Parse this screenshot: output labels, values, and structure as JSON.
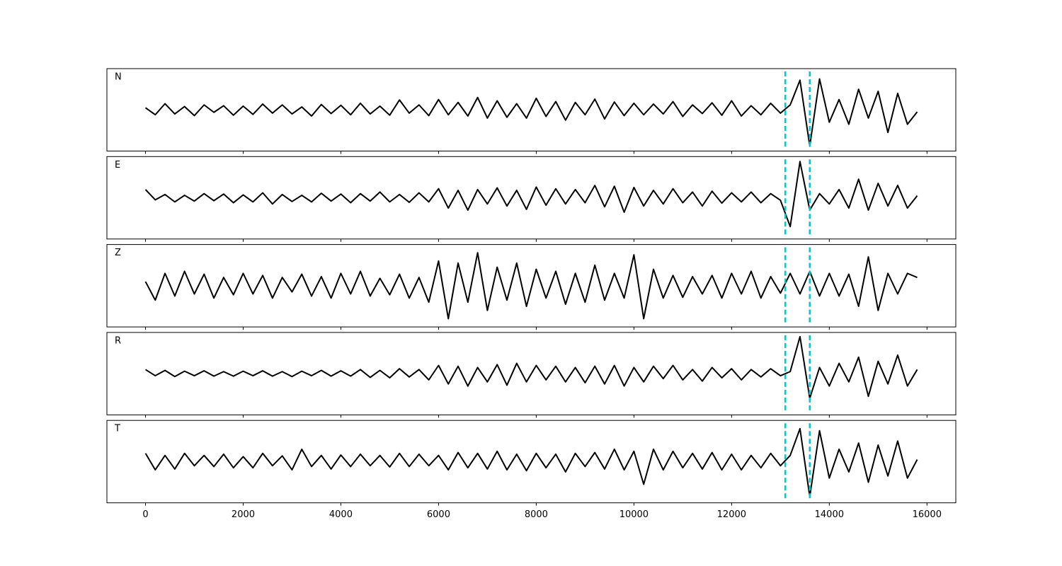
{
  "chart_data": {
    "type": "line",
    "x": [
      0,
      200,
      400,
      600,
      800,
      1000,
      1200,
      1400,
      1600,
      1800,
      2000,
      2200,
      2400,
      2600,
      2800,
      3000,
      3200,
      3400,
      3600,
      3800,
      4000,
      4200,
      4400,
      4600,
      4800,
      5000,
      5200,
      5400,
      5600,
      5800,
      6000,
      6200,
      6400,
      6600,
      6800,
      7000,
      7200,
      7400,
      7600,
      7800,
      8000,
      8200,
      8400,
      8600,
      8800,
      9000,
      9200,
      9400,
      9600,
      9800,
      10000,
      10200,
      10400,
      10600,
      10800,
      11000,
      11200,
      11400,
      11600,
      11800,
      12000,
      12200,
      12400,
      12600,
      12800,
      13000,
      13200,
      13400,
      13600,
      13800,
      14000,
      14200,
      14400,
      14600,
      14800,
      15000,
      15200,
      15400,
      15600,
      15800
    ],
    "xlim": [
      -790,
      16590
    ],
    "xticks": [
      0,
      2000,
      4000,
      6000,
      8000,
      10000,
      12000,
      14000,
      16000
    ],
    "ylim": [
      -1,
      1
    ],
    "vlines": [
      13100,
      13600
    ],
    "vline_color": "#17bfbf",
    "line_color": "#000000",
    "series": [
      {
        "name": "N",
        "values": [
          0.05,
          -0.12,
          0.15,
          -0.1,
          0.08,
          -0.14,
          0.12,
          -0.06,
          0.1,
          -0.13,
          0.09,
          -0.11,
          0.14,
          -0.08,
          0.12,
          -0.1,
          0.07,
          -0.15,
          0.13,
          -0.09,
          0.11,
          -0.12,
          0.16,
          -0.1,
          0.09,
          -0.13,
          0.24,
          -0.08,
          0.12,
          -0.14,
          0.25,
          -0.12,
          0.18,
          -0.15,
          0.3,
          -0.2,
          0.22,
          -0.18,
          0.15,
          -0.2,
          0.28,
          -0.16,
          0.2,
          -0.25,
          0.18,
          -0.12,
          0.26,
          -0.22,
          0.19,
          -0.14,
          0.16,
          -0.12,
          0.14,
          -0.1,
          0.2,
          -0.16,
          0.12,
          -0.09,
          0.17,
          -0.13,
          0.22,
          -0.15,
          0.1,
          -0.12,
          0.16,
          -0.08,
          0.12,
          0.72,
          -0.88,
          0.75,
          -0.3,
          0.25,
          -0.35,
          0.5,
          -0.2,
          0.45,
          -0.55,
          0.4,
          -0.35,
          -0.05
        ]
      },
      {
        "name": "E",
        "values": [
          0.2,
          -0.05,
          0.08,
          -0.1,
          0.06,
          -0.08,
          0.1,
          -0.07,
          0.09,
          -0.12,
          0.07,
          -0.1,
          0.12,
          -0.15,
          0.08,
          -0.09,
          0.06,
          -0.1,
          0.11,
          -0.08,
          0.09,
          -0.12,
          0.1,
          -0.08,
          0.14,
          -0.1,
          0.08,
          -0.11,
          0.12,
          -0.1,
          0.22,
          -0.25,
          0.18,
          -0.3,
          0.2,
          -0.15,
          0.24,
          -0.2,
          0.18,
          -0.28,
          0.26,
          -0.18,
          0.22,
          -0.15,
          0.2,
          -0.12,
          0.3,
          -0.22,
          0.28,
          -0.35,
          0.25,
          -0.2,
          0.18,
          -0.15,
          0.22,
          -0.12,
          0.14,
          -0.2,
          0.16,
          -0.13,
          0.12,
          -0.1,
          0.14,
          -0.12,
          0.1,
          -0.06,
          -0.7,
          0.88,
          -0.3,
          0.1,
          -0.15,
          0.2,
          -0.25,
          0.45,
          -0.3,
          0.35,
          -0.2,
          0.3,
          -0.25,
          0.05
        ]
      },
      {
        "name": "Z",
        "values": [
          0.1,
          -0.35,
          0.3,
          -0.25,
          0.35,
          -0.2,
          0.28,
          -0.3,
          0.2,
          -0.22,
          0.3,
          -0.2,
          0.25,
          -0.3,
          0.2,
          -0.15,
          0.28,
          -0.25,
          0.22,
          -0.3,
          0.3,
          -0.2,
          0.35,
          -0.25,
          0.18,
          -0.22,
          0.28,
          -0.3,
          0.2,
          -0.4,
          0.6,
          -0.8,
          0.55,
          -0.4,
          0.8,
          -0.6,
          0.45,
          -0.35,
          0.55,
          -0.5,
          0.4,
          -0.3,
          0.35,
          -0.45,
          0.3,
          -0.4,
          0.5,
          -0.35,
          0.3,
          -0.3,
          0.75,
          -0.8,
          0.4,
          -0.3,
          0.25,
          -0.28,
          0.22,
          -0.2,
          0.25,
          -0.3,
          0.3,
          -0.2,
          0.35,
          -0.3,
          0.22,
          -0.18,
          0.3,
          -0.2,
          0.35,
          -0.25,
          0.3,
          -0.25,
          0.28,
          -0.5,
          0.7,
          -0.6,
          0.3,
          -0.2,
          0.3,
          0.2
        ]
      },
      {
        "name": "R",
        "values": [
          0.1,
          -0.05,
          0.08,
          -0.07,
          0.06,
          -0.05,
          0.07,
          -0.06,
          0.05,
          -0.06,
          0.06,
          -0.05,
          0.07,
          -0.06,
          0.05,
          -0.07,
          0.06,
          -0.05,
          0.08,
          -0.06,
          0.07,
          -0.06,
          0.1,
          -0.09,
          0.08,
          -0.1,
          0.12,
          -0.08,
          0.1,
          -0.15,
          0.2,
          -0.25,
          0.18,
          -0.3,
          0.15,
          -0.2,
          0.22,
          -0.28,
          0.25,
          -0.2,
          0.2,
          -0.15,
          0.18,
          -0.2,
          0.15,
          -0.22,
          0.18,
          -0.25,
          0.2,
          -0.3,
          0.15,
          -0.2,
          0.18,
          -0.12,
          0.2,
          -0.15,
          0.1,
          -0.18,
          0.15,
          -0.1,
          0.12,
          -0.15,
          0.1,
          -0.08,
          0.12,
          -0.05,
          0.05,
          0.9,
          -0.6,
          0.15,
          -0.3,
          0.25,
          -0.2,
          0.4,
          -0.55,
          0.3,
          -0.25,
          0.45,
          -0.3,
          0.1
        ]
      },
      {
        "name": "T",
        "values": [
          0.2,
          -0.2,
          0.15,
          -0.18,
          0.2,
          -0.1,
          0.15,
          -0.12,
          0.18,
          -0.15,
          0.12,
          -0.15,
          0.2,
          -0.1,
          0.14,
          -0.2,
          0.3,
          -0.12,
          0.15,
          -0.18,
          0.16,
          -0.12,
          0.18,
          -0.1,
          0.15,
          -0.13,
          0.2,
          -0.12,
          0.18,
          -0.1,
          0.15,
          -0.2,
          0.22,
          -0.15,
          0.2,
          -0.18,
          0.25,
          -0.2,
          0.18,
          -0.22,
          0.2,
          -0.15,
          0.18,
          -0.25,
          0.2,
          -0.12,
          0.22,
          -0.18,
          0.3,
          -0.2,
          0.25,
          -0.55,
          0.3,
          -0.2,
          0.25,
          -0.15,
          0.2,
          -0.18,
          0.22,
          -0.2,
          0.18,
          -0.2,
          0.15,
          -0.15,
          0.2,
          -0.1,
          0.15,
          0.8,
          -0.85,
          0.75,
          -0.4,
          0.3,
          -0.25,
          0.45,
          -0.5,
          0.4,
          -0.35,
          0.5,
          -0.4,
          0.05
        ]
      }
    ]
  }
}
